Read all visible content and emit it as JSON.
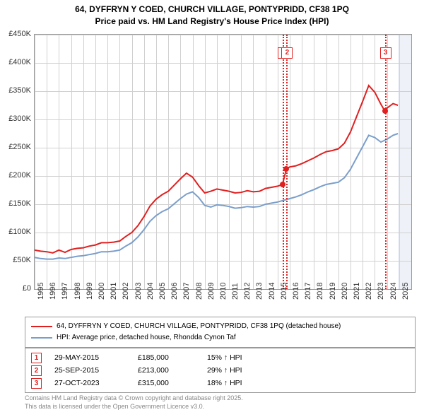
{
  "title": {
    "line1": "64, DYFFRYN Y COED, CHURCH VILLAGE, PONTYPRIDD, CF38 1PQ",
    "line2": "Price paid vs. HM Land Registry's House Price Index (HPI)"
  },
  "chart": {
    "type": "line",
    "plot_bg": "#ffffff",
    "future_bg": "#eef2f8",
    "grid_color": "#d0d0d0",
    "border_color": "#999999",
    "ylim": [
      0,
      450000
    ],
    "ytick_step": 50000,
    "yticks": [
      "£0",
      "£50K",
      "£100K",
      "£150K",
      "£200K",
      "£250K",
      "£300K",
      "£350K",
      "£400K",
      "£450K"
    ],
    "xlim": [
      1995,
      2026
    ],
    "xticks": [
      1995,
      1996,
      1997,
      1998,
      1999,
      2000,
      2001,
      2002,
      2003,
      2004,
      2005,
      2006,
      2007,
      2008,
      2009,
      2010,
      2011,
      2012,
      2013,
      2014,
      2015,
      2016,
      2017,
      2018,
      2019,
      2020,
      2021,
      2022,
      2023,
      2024,
      2025
    ],
    "series": [
      {
        "name": "property",
        "color": "#e02020",
        "width": 2,
        "label": "64, DYFFRYN Y COED, CHURCH VILLAGE, PONTYPRIDD, CF38 1PQ (detached house)",
        "data": [
          [
            1995.0,
            69000
          ],
          [
            1995.5,
            67000
          ],
          [
            1996.0,
            66000
          ],
          [
            1996.5,
            64000
          ],
          [
            1997.0,
            69000
          ],
          [
            1997.5,
            65000
          ],
          [
            1998.0,
            70000
          ],
          [
            1998.5,
            72000
          ],
          [
            1999.0,
            73000
          ],
          [
            1999.5,
            76000
          ],
          [
            2000.0,
            78000
          ],
          [
            2000.5,
            82000
          ],
          [
            2001.0,
            82000
          ],
          [
            2001.5,
            83000
          ],
          [
            2002.0,
            85000
          ],
          [
            2002.5,
            93000
          ],
          [
            2003.0,
            100000
          ],
          [
            2003.5,
            112000
          ],
          [
            2004.0,
            128000
          ],
          [
            2004.5,
            147000
          ],
          [
            2005.0,
            159000
          ],
          [
            2005.5,
            167000
          ],
          [
            2006.0,
            173000
          ],
          [
            2006.5,
            184000
          ],
          [
            2007.0,
            195000
          ],
          [
            2007.5,
            205000
          ],
          [
            2008.0,
            198000
          ],
          [
            2008.5,
            183000
          ],
          [
            2009.0,
            170000
          ],
          [
            2009.5,
            173000
          ],
          [
            2010.0,
            177000
          ],
          [
            2010.5,
            175000
          ],
          [
            2011.0,
            173000
          ],
          [
            2011.5,
            170000
          ],
          [
            2012.0,
            171000
          ],
          [
            2012.5,
            174000
          ],
          [
            2013.0,
            172000
          ],
          [
            2013.5,
            173000
          ],
          [
            2014.0,
            178000
          ],
          [
            2014.5,
            180000
          ],
          [
            2015.0,
            182000
          ],
          [
            2015.4,
            185000
          ],
          [
            2015.73,
            213000
          ],
          [
            2016.0,
            216000
          ],
          [
            2016.5,
            218000
          ],
          [
            2017.0,
            222000
          ],
          [
            2017.5,
            227000
          ],
          [
            2018.0,
            232000
          ],
          [
            2018.5,
            238000
          ],
          [
            2019.0,
            243000
          ],
          [
            2019.5,
            245000
          ],
          [
            2020.0,
            248000
          ],
          [
            2020.5,
            258000
          ],
          [
            2021.0,
            278000
          ],
          [
            2021.5,
            305000
          ],
          [
            2022.0,
            332000
          ],
          [
            2022.5,
            360000
          ],
          [
            2023.0,
            348000
          ],
          [
            2023.5,
            327000
          ],
          [
            2023.82,
            315000
          ],
          [
            2024.0,
            320000
          ],
          [
            2024.5,
            328000
          ],
          [
            2024.9,
            325000
          ]
        ]
      },
      {
        "name": "hpi",
        "color": "#7a9ecb",
        "width": 2,
        "label": "HPI: Average price, detached house, Rhondda Cynon Taf",
        "data": [
          [
            1995.0,
            56000
          ],
          [
            1995.5,
            54000
          ],
          [
            1996.0,
            53000
          ],
          [
            1996.5,
            53000
          ],
          [
            1997.0,
            55000
          ],
          [
            1997.5,
            54000
          ],
          [
            1998.0,
            56000
          ],
          [
            1998.5,
            58000
          ],
          [
            1999.0,
            59000
          ],
          [
            1999.5,
            61000
          ],
          [
            2000.0,
            63000
          ],
          [
            2000.5,
            66000
          ],
          [
            2001.0,
            66000
          ],
          [
            2001.5,
            67000
          ],
          [
            2002.0,
            69000
          ],
          [
            2002.5,
            76000
          ],
          [
            2003.0,
            82000
          ],
          [
            2003.5,
            92000
          ],
          [
            2004.0,
            105000
          ],
          [
            2004.5,
            120000
          ],
          [
            2005.0,
            130000
          ],
          [
            2005.5,
            137000
          ],
          [
            2006.0,
            142000
          ],
          [
            2006.5,
            151000
          ],
          [
            2007.0,
            160000
          ],
          [
            2007.5,
            168000
          ],
          [
            2008.0,
            172000
          ],
          [
            2008.5,
            162000
          ],
          [
            2009.0,
            148000
          ],
          [
            2009.5,
            145000
          ],
          [
            2010.0,
            149000
          ],
          [
            2010.5,
            148000
          ],
          [
            2011.0,
            146000
          ],
          [
            2011.5,
            143000
          ],
          [
            2012.0,
            144000
          ],
          [
            2012.5,
            146000
          ],
          [
            2013.0,
            145000
          ],
          [
            2013.5,
            146000
          ],
          [
            2014.0,
            150000
          ],
          [
            2014.5,
            152000
          ],
          [
            2015.0,
            154000
          ],
          [
            2015.5,
            157000
          ],
          [
            2016.0,
            160000
          ],
          [
            2016.5,
            163000
          ],
          [
            2017.0,
            167000
          ],
          [
            2017.5,
            172000
          ],
          [
            2018.0,
            176000
          ],
          [
            2018.5,
            181000
          ],
          [
            2019.0,
            185000
          ],
          [
            2019.5,
            187000
          ],
          [
            2020.0,
            189000
          ],
          [
            2020.5,
            197000
          ],
          [
            2021.0,
            212000
          ],
          [
            2021.5,
            232000
          ],
          [
            2022.0,
            252000
          ],
          [
            2022.5,
            272000
          ],
          [
            2023.0,
            268000
          ],
          [
            2023.5,
            260000
          ],
          [
            2024.0,
            265000
          ],
          [
            2024.5,
            272000
          ],
          [
            2024.9,
            275000
          ]
        ]
      }
    ],
    "sale_markers": [
      {
        "n": "1",
        "year": 2015.41,
        "top_offset": 18
      },
      {
        "n": "2",
        "year": 2015.73,
        "top_offset": 18
      },
      {
        "n": "3",
        "year": 2023.82,
        "top_offset": 18
      }
    ],
    "sale_points": [
      {
        "year": 2015.41,
        "price": 185000
      },
      {
        "year": 2015.73,
        "price": 213000
      },
      {
        "year": 2023.82,
        "price": 315000
      }
    ]
  },
  "legend": {
    "row1_color": "#e02020",
    "row2_color": "#7a9ecb"
  },
  "sales_table": {
    "rows": [
      {
        "n": "1",
        "date": "29-MAY-2015",
        "price": "£185,000",
        "pct": "15% ↑ HPI"
      },
      {
        "n": "2",
        "date": "25-SEP-2015",
        "price": "£213,000",
        "pct": "29% ↑ HPI"
      },
      {
        "n": "3",
        "date": "27-OCT-2023",
        "price": "£315,000",
        "pct": "18% ↑ HPI"
      }
    ]
  },
  "attribution": {
    "line1": "Contains HM Land Registry data © Crown copyright and database right 2025.",
    "line2": "This data is licensed under the Open Government Licence v3.0."
  }
}
